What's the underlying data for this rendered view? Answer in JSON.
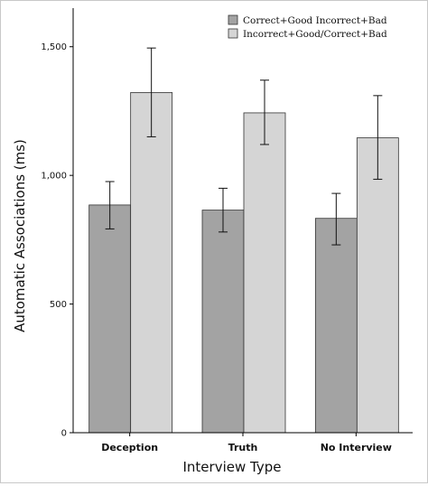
{
  "chart_data": {
    "type": "bar",
    "title": "",
    "xlabel": "Interview Type",
    "ylabel": "Automatic Associations (ms)",
    "categories": [
      "Deception",
      "Truth",
      "No Interview"
    ],
    "ylim": [
      0,
      1650
    ],
    "yticks": [
      0,
      500,
      1000,
      1500
    ],
    "ytick_labels": [
      "0",
      "500",
      "1,000",
      "1,500"
    ],
    "series": [
      {
        "name": "Correct+Good Incorrect+Bad",
        "color": "#a3a3a3",
        "values": [
          885,
          865,
          833
        ],
        "error_low": [
          792,
          780,
          730
        ],
        "error_high": [
          976,
          950,
          930
        ]
      },
      {
        "name": "Incorrect+Good/Correct+Bad",
        "color": "#d5d5d5",
        "values": [
          1322,
          1243,
          1146
        ],
        "error_low": [
          1150,
          1120,
          985
        ],
        "error_high": [
          1495,
          1370,
          1310
        ]
      }
    ],
    "grid": false,
    "legend": "top-right"
  }
}
